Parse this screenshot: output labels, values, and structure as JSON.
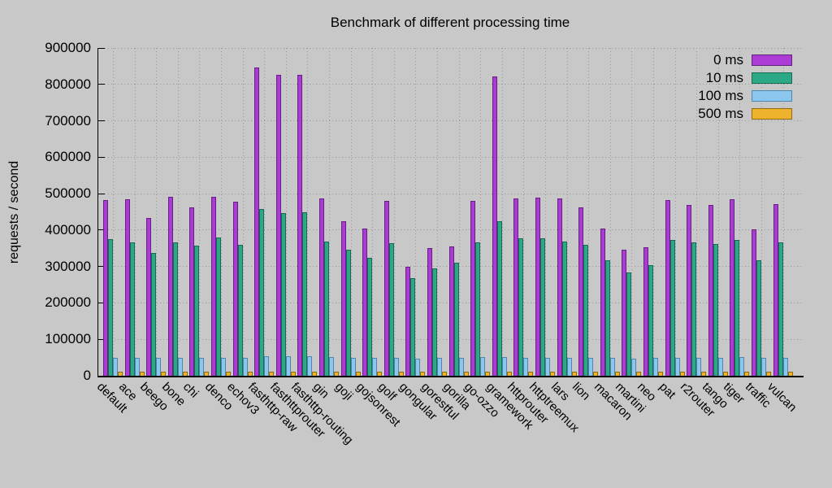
{
  "chart_data": {
    "type": "bar",
    "title": "Benchmark of different processing time",
    "xlabel": "",
    "ylabel": "requests / second",
    "ylim": [
      0,
      900000
    ],
    "ytick_step": 100000,
    "ytick_labels": [
      "0",
      "100000",
      "200000",
      "300000",
      "400000",
      "500000",
      "600000",
      "700000",
      "800000",
      "900000"
    ],
    "grid": true,
    "legend_position": "top-right",
    "background_color": "#c8c8c8",
    "grid_color": "#989898",
    "categories": [
      "default",
      "ace",
      "beego",
      "bone",
      "chi",
      "denco",
      "echov3",
      "fasthttp-raw",
      "fasthttprouter",
      "fasthttp-routing",
      "gin",
      "goji",
      "gojsonrest",
      "golf",
      "gongular",
      "gorestful",
      "gorilla",
      "go-ozzo",
      "gramework",
      "httprouter",
      "httptreemux",
      "lars",
      "lion",
      "macaron",
      "martini",
      "neo",
      "pat",
      "r2router",
      "tango",
      "tiger",
      "traffic",
      "vulcan"
    ],
    "series": [
      {
        "name": "0 ms",
        "color": "#ab3bd4",
        "border": "#63207e",
        "values": [
          480000,
          483000,
          430000,
          489000,
          461000,
          489000,
          475000,
          845000,
          825000,
          824000,
          484000,
          422000,
          402000,
          478000,
          296000,
          349000,
          352000,
          478000,
          820000,
          484000,
          486000,
          484000,
          460000,
          403000,
          345000,
          351000,
          480000,
          467000,
          467000,
          482000,
          400000,
          470000
        ]
      },
      {
        "name": "10 ms",
        "color": "#2da887",
        "border": "#176a54",
        "values": [
          373000,
          364000,
          336000,
          364000,
          356000,
          378000,
          358000,
          455000,
          445000,
          447000,
          366000,
          345000,
          321000,
          362000,
          266000,
          292000,
          309000,
          363000,
          421000,
          375000,
          375000,
          366000,
          358000,
          316000,
          282000,
          301000,
          370000,
          365000,
          359000,
          370000,
          316000,
          365000
        ]
      },
      {
        "name": "100 ms",
        "color": "#8ac6ee",
        "border": "#4e86ad",
        "values": [
          48000,
          48000,
          46000,
          48000,
          48000,
          48000,
          48000,
          52000,
          52000,
          52000,
          50000,
          48000,
          46000,
          48000,
          45000,
          46000,
          48000,
          50000,
          50000,
          48000,
          48000,
          48000,
          48000,
          48000,
          45000,
          46000,
          48000,
          48000,
          48000,
          50000,
          46000,
          48000
        ]
      },
      {
        "name": "500 ms",
        "color": "#eeb32d",
        "border": "#96690e",
        "values": [
          8000,
          8000,
          8000,
          8000,
          8000,
          8000,
          8000,
          10000,
          10000,
          10000,
          8000,
          8000,
          8000,
          8000,
          8000,
          8000,
          8000,
          8000,
          10000,
          8000,
          8000,
          8000,
          8000,
          8000,
          8000,
          8000,
          8000,
          8000,
          8000,
          8000,
          8000,
          8000
        ]
      }
    ]
  }
}
